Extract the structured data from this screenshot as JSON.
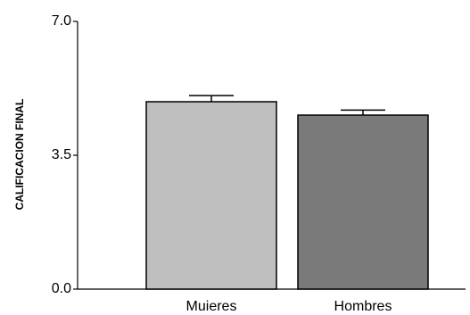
{
  "chart_data": {
    "type": "bar",
    "title": "",
    "xlabel": "",
    "ylabel": "CALIFICACION FINAL",
    "ylim": [
      0,
      7.0
    ],
    "yticks": [
      "0.0",
      "3.5",
      "7.0"
    ],
    "ytick_values": [
      0,
      3.5,
      7.0
    ],
    "grid": false,
    "categories": [
      "Muieres",
      "Hombres"
    ],
    "values": [
      4.9,
      4.55
    ],
    "errors": [
      0.16,
      0.13
    ],
    "colors": [
      "#bfbfbf",
      "#7a7a7a"
    ]
  }
}
